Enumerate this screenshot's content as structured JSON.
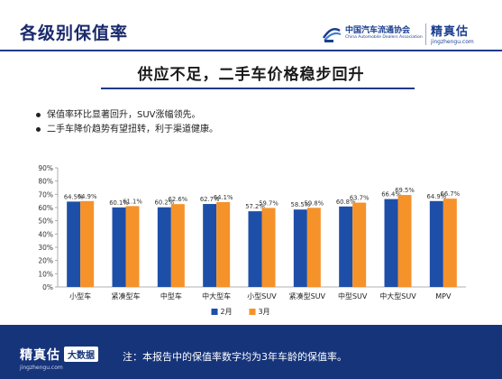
{
  "header": {
    "title": "各级别保值率",
    "org_logo_name": "中国汽车流通协会",
    "org_logo_en": "China Automobile Dealers Association",
    "brand_logo_name": "精真估",
    "brand_logo_url": "jingzhengu.com"
  },
  "headline": "供应不足，二手车价格稳步回升",
  "bullets": [
    "保值率环比显著回升，SUV涨幅领先。",
    "二手车降价趋势有望扭转，利于渠道健康。"
  ],
  "chart_data": {
    "type": "bar",
    "categories": [
      "小型车",
      "紧凑型车",
      "中型车",
      "中大型车",
      "小型SUV",
      "紧凑型SUV",
      "中型SUV",
      "中大型SUV",
      "MPV"
    ],
    "series": [
      {
        "name": "2月",
        "values": [
          64.5,
          60.1,
          60.2,
          62.7,
          57.2,
          58.5,
          60.8,
          66.4,
          64.9
        ],
        "labels": [
          "64.5%",
          "60.1%",
          "60.2%",
          "62.7%",
          "57.2%",
          "58.5%",
          "60.8%",
          "66.4%",
          "64.9%"
        ],
        "color": "#1e4fa8"
      },
      {
        "name": "3月",
        "values": [
          64.9,
          61.1,
          62.6,
          64.1,
          59.7,
          59.8,
          63.7,
          69.5,
          66.7
        ],
        "labels": [
          "64.9%",
          "61.1%",
          "62.6%",
          "64.1%",
          "59.7%",
          "59.8%",
          "63.7%",
          "69.5%",
          "66.7%"
        ],
        "color": "#f5922a"
      }
    ],
    "ylim": [
      0,
      90
    ],
    "yticks": [
      0,
      10,
      20,
      30,
      40,
      50,
      60,
      70,
      80,
      90
    ],
    "ytick_labels": [
      "0%",
      "10%",
      "20%",
      "30%",
      "40%",
      "50%",
      "60%",
      "70%",
      "80%",
      "90%"
    ],
    "grid": false,
    "legend_position": "bottom",
    "title": "",
    "xlabel": "",
    "ylabel": ""
  },
  "footer": {
    "brand_name": "精真估",
    "badge": "大数据",
    "url": "jingzhengu.com",
    "note": "注：本报告中的保值率数字均为3年车龄的保值率。"
  },
  "colors": {
    "primary_navy": "#16347a",
    "series_blue": "#1e4fa8",
    "series_orange": "#f5922a"
  }
}
